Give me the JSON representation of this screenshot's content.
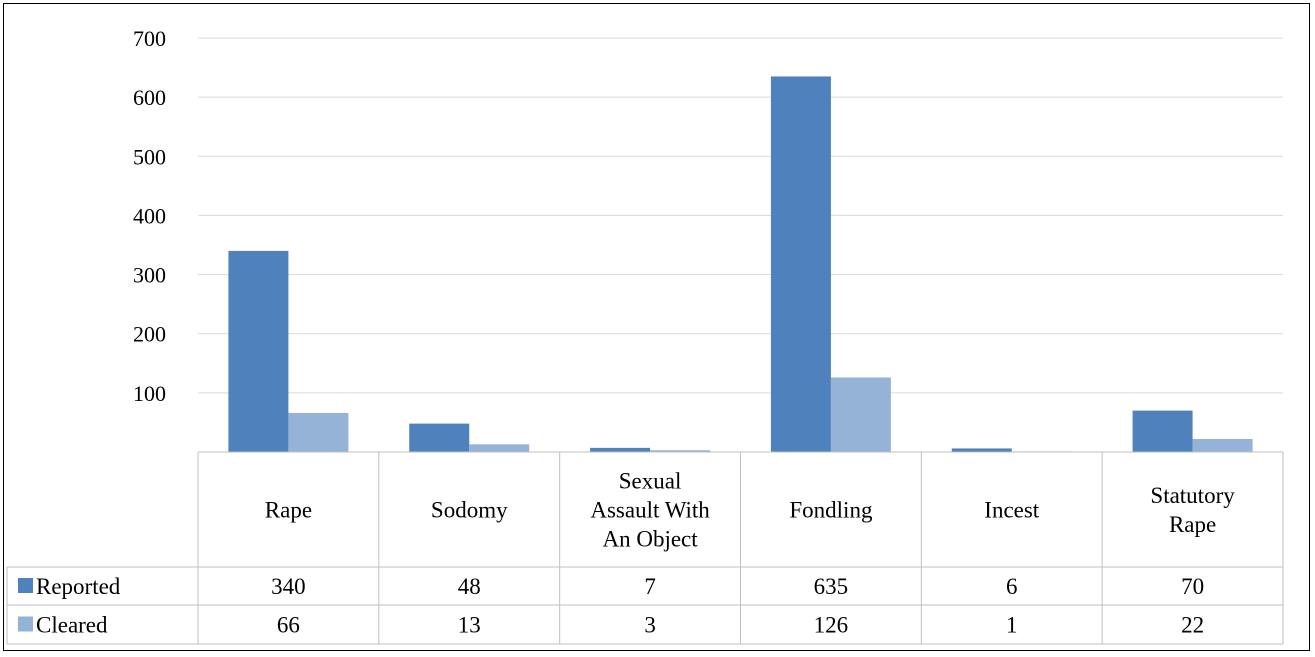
{
  "chart_data": {
    "type": "bar",
    "title": "",
    "xlabel": "",
    "ylabel": "",
    "ylim": [
      0,
      700
    ],
    "yticks": [
      100,
      200,
      300,
      400,
      500,
      600,
      700
    ],
    "grid": true,
    "legend": "data-table",
    "categories": [
      [
        "Rape"
      ],
      [
        "Sodomy"
      ],
      [
        "Sexual",
        "Assault With",
        "An Object"
      ],
      [
        "Fondling"
      ],
      [
        "Incest"
      ],
      [
        "Statutory",
        "Rape"
      ]
    ],
    "series": [
      {
        "name": "Reported",
        "color": "#4f81bd",
        "values": [
          340,
          48,
          7,
          635,
          6,
          70
        ]
      },
      {
        "name": "Cleared",
        "color": "#95b3d7",
        "values": [
          66,
          13,
          3,
          126,
          1,
          22
        ]
      }
    ]
  }
}
